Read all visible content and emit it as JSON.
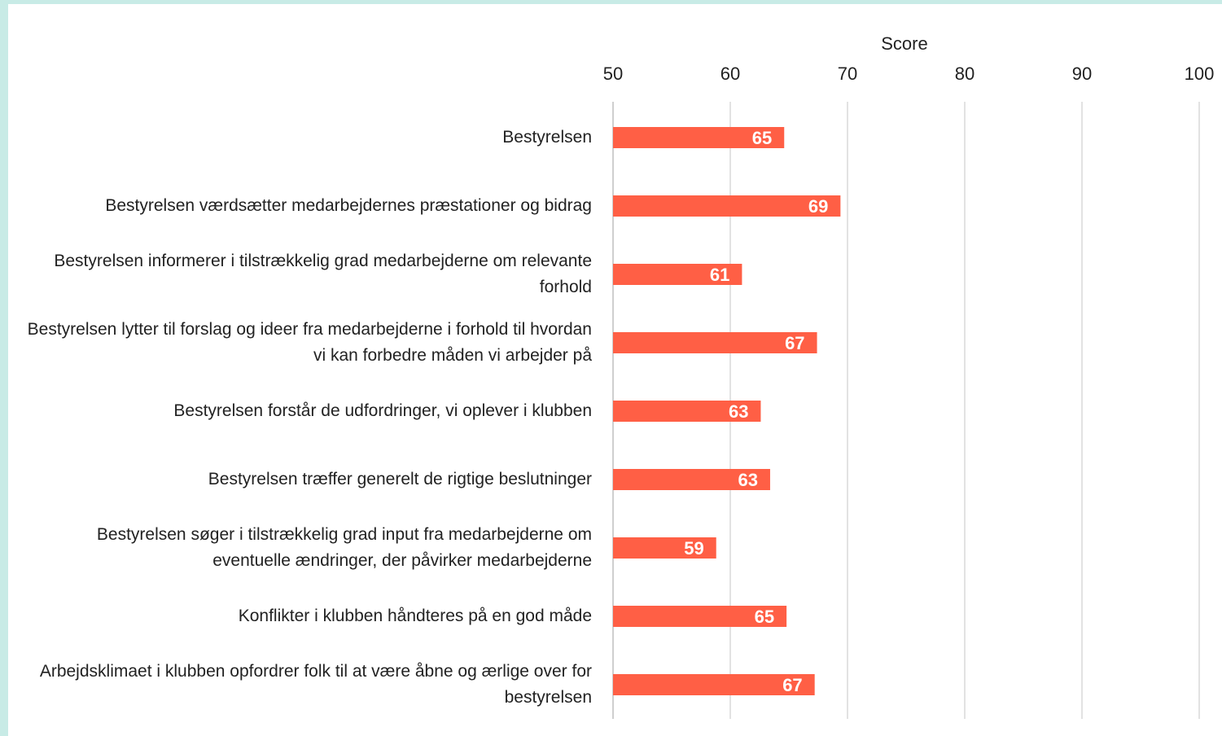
{
  "chart_data": {
    "type": "bar",
    "orientation": "horizontal",
    "x_label": "Score",
    "categories": [
      "Bestyrelsen",
      "Bestyrelsen værdsætter medarbejdernes præstationer og bidrag",
      "Bestyrelsen informerer i tilstrækkelig grad medarbejderne om relevante forhold",
      "Bestyrelsen lytter til forslag og ideer fra medarbejderne i forhold til hvordan vi kan forbedre måden vi arbejder på",
      "Bestyrelsen forstår de udfordringer, vi oplever i klubben",
      "Bestyrelsen træffer generelt de rigtige beslutninger",
      "Bestyrelsen søger i tilstrækkelig grad input fra medarbejderne om eventuelle ændringer, der påvirker medarbejderne",
      "Konflikter i klubben håndteres på en god måde",
      "Arbejdsklimaet i klubben opfordrer folk til at være åbne og ærlige over for bestyrelsen"
    ],
    "values": [
      64.6,
      69.4,
      61.0,
      67.4,
      62.6,
      63.4,
      58.8,
      64.8,
      67.2
    ],
    "value_labels": [
      "65",
      "69",
      "61",
      "67",
      "63",
      "63",
      "59",
      "65",
      "67"
    ],
    "color": "#ff5f45",
    "xlim": [
      50,
      100
    ],
    "xticks": [
      50,
      60,
      70,
      80,
      90,
      100
    ],
    "grid": true
  }
}
